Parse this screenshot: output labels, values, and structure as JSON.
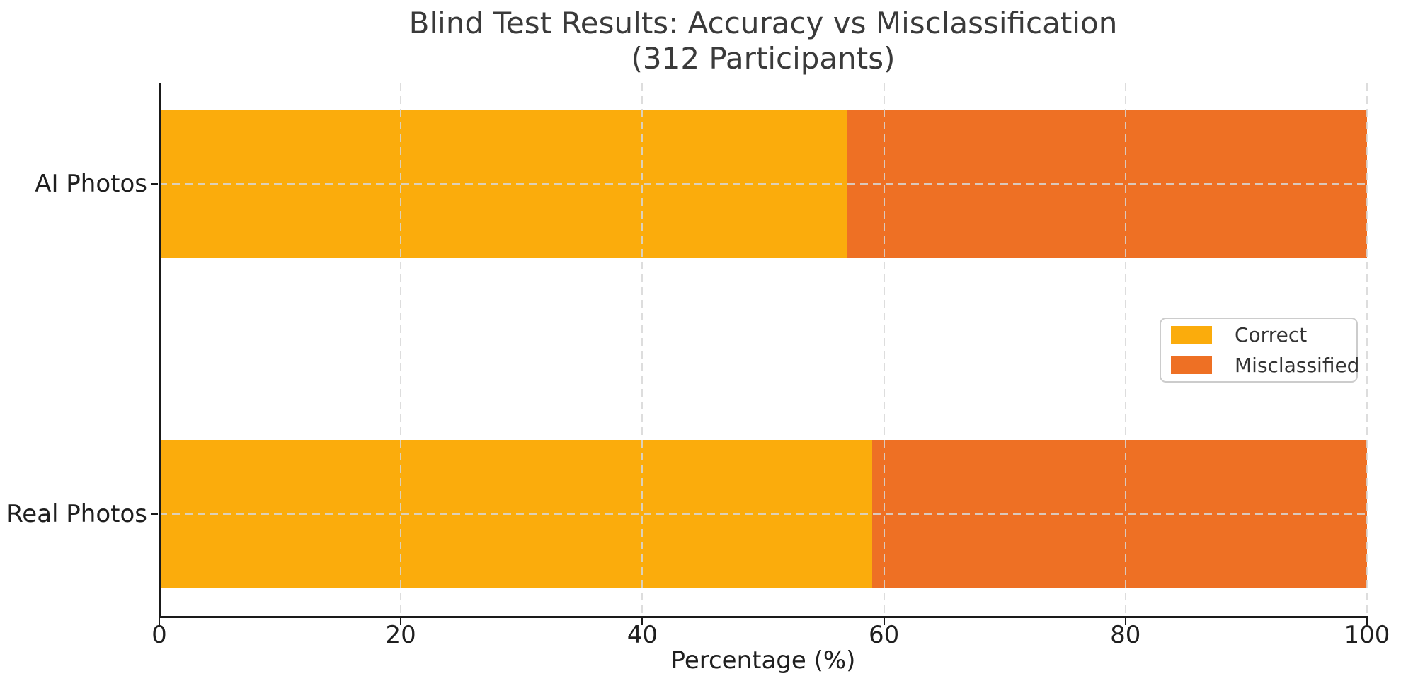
{
  "title": {
    "line1": "Blind Test Results: Accuracy vs Misclassification",
    "line2": "(312 Participants)"
  },
  "chart_data": {
    "type": "bar",
    "orientation": "horizontal",
    "stacked": true,
    "title": "Blind Test Results: Accuracy vs Misclassification (312 Participants)",
    "categories": [
      "AI Photos",
      "Real Photos"
    ],
    "series": [
      {
        "name": "Correct",
        "color": "#FBAC0C",
        "values": [
          57,
          59
        ]
      },
      {
        "name": "Misclassified",
        "color": "#EE7024",
        "values": [
          43,
          41
        ]
      }
    ],
    "xlabel": "Percentage (%)",
    "xlim": [
      0,
      100
    ],
    "xticks": [
      0,
      20,
      40,
      60,
      80,
      100
    ],
    "xtick_labels": [
      "0",
      "20",
      "40",
      "60",
      "80",
      "100"
    ],
    "grid": "dashed",
    "grid_color": "#d7d7d7",
    "legend_position": "center right",
    "legend_entries": [
      "Correct",
      "Misclassified"
    ]
  }
}
